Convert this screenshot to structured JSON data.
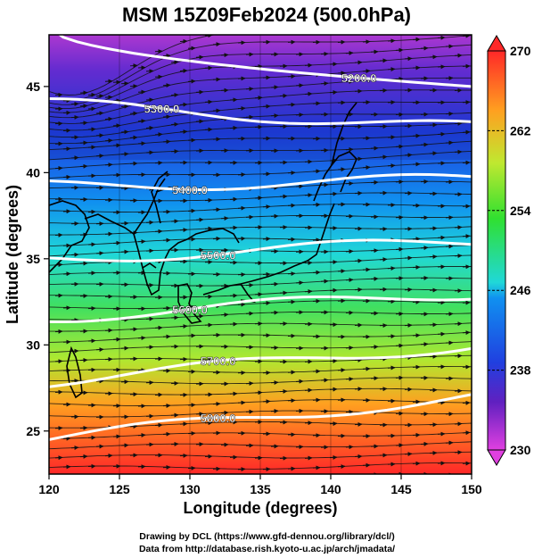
{
  "title": "MSM 15Z09Feb2024 (500.0hPa)",
  "x_axis": {
    "label": "Longitude (degrees)",
    "range": [
      120,
      150
    ],
    "ticks": [
      120,
      125,
      130,
      135,
      140,
      145,
      150
    ]
  },
  "y_axis": {
    "label": "Latitude  (degrees)",
    "range": [
      22.5,
      48
    ],
    "ticks": [
      25,
      30,
      35,
      40,
      45
    ]
  },
  "colorbar": {
    "range": [
      230,
      270
    ],
    "ticks": [
      230,
      238,
      246,
      254,
      262,
      270
    ],
    "colors": {
      "low": "#e040e0",
      "mid_low": "#2040e0",
      "mid": "#20d0d0",
      "mid_high": "#40e040",
      "high": "#ff3020"
    }
  },
  "contours": [
    {
      "label": "5200.0",
      "lat_west": 48.5,
      "lat_east": 45.0
    },
    {
      "label": "5300.0",
      "lat_west": 44.0,
      "lat_east": 42.6
    },
    {
      "label": "5400.0",
      "lat_west": 39.2,
      "lat_east": 39.6
    },
    {
      "label": "5500.0",
      "lat_west": 35.0,
      "lat_east": 36.0
    },
    {
      "label": "5600.0",
      "lat_west": 31.6,
      "lat_east": 33.0
    },
    {
      "label": "5700.0",
      "lat_west": 27.9,
      "lat_east": 30.0
    },
    {
      "label": "5800.0",
      "lat_west": 24.6,
      "lat_east": 27.0
    }
  ],
  "credits": {
    "line1": "Drawing by DCL (https://www.gfd-dennou.org/library/dcl/)",
    "line2": "Data from http://database.rish.kyoto-u.ac.jp/arch/jmadata/"
  }
}
